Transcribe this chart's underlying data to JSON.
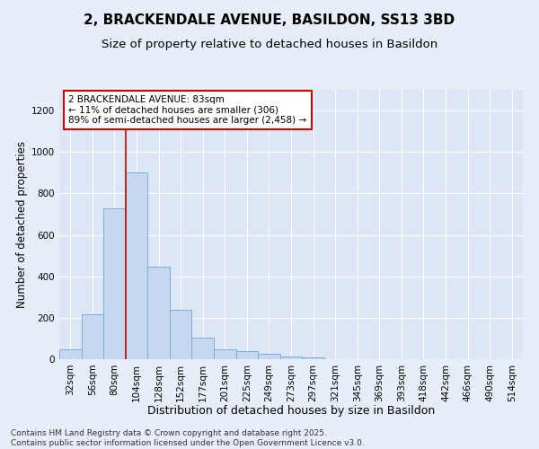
{
  "title": "2, BRACKENDALE AVENUE, BASILDON, SS13 3BD",
  "subtitle": "Size of property relative to detached houses in Basildon",
  "xlabel": "Distribution of detached houses by size in Basildon",
  "ylabel": "Number of detached properties",
  "footer_line1": "Contains HM Land Registry data © Crown copyright and database right 2025.",
  "footer_line2": "Contains public sector information licensed under the Open Government Licence v3.0.",
  "categories": [
    "32sqm",
    "56sqm",
    "80sqm",
    "104sqm",
    "128sqm",
    "152sqm",
    "177sqm",
    "201sqm",
    "225sqm",
    "249sqm",
    "273sqm",
    "297sqm",
    "321sqm",
    "345sqm",
    "369sqm",
    "393sqm",
    "418sqm",
    "442sqm",
    "466sqm",
    "490sqm",
    "514sqm"
  ],
  "values": [
    48,
    218,
    730,
    900,
    447,
    238,
    103,
    48,
    38,
    28,
    15,
    10,
    0,
    0,
    0,
    0,
    0,
    0,
    0,
    0,
    0
  ],
  "bar_color": "#c5d8f0",
  "bar_edge_color": "#7aafd4",
  "background_color": "#e8eef8",
  "plot_bg_color": "#dce6f5",
  "grid_color": "#ffffff",
  "annotation_text": "2 BRACKENDALE AVENUE: 83sqm\n← 11% of detached houses are smaller (306)\n89% of semi-detached houses are larger (2,458) →",
  "annotation_box_color": "#ffffff",
  "annotation_box_edge": "#cc0000",
  "vline_x": 2.5,
  "vline_color": "#cc0000",
  "ylim": [
    0,
    1300
  ],
  "yticks": [
    0,
    200,
    400,
    600,
    800,
    1000,
    1200
  ],
  "title_fontsize": 11,
  "subtitle_fontsize": 9.5,
  "xlabel_fontsize": 9,
  "ylabel_fontsize": 8.5,
  "tick_fontsize": 7.5,
  "annotation_fontsize": 7.5,
  "footer_fontsize": 6.5
}
